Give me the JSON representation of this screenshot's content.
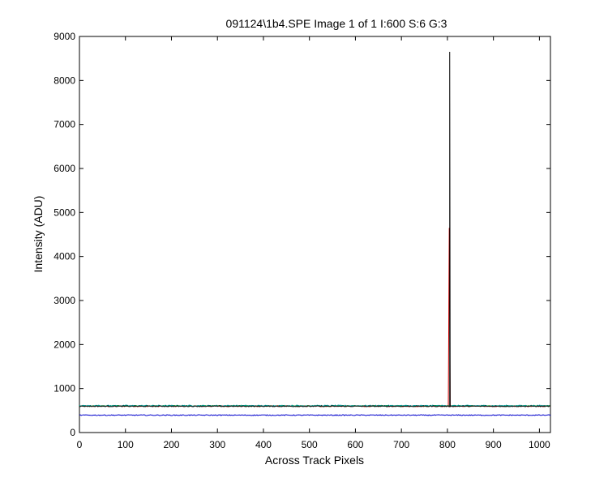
{
  "chart_data": {
    "type": "line",
    "title": "091124\\1b4.SPE  Image 1 of 1  I:600  S:6  G:3",
    "xlabel": "Across Track Pixels",
    "ylabel": "Intensity (ADU)",
    "xlim": [
      0,
      1024
    ],
    "ylim": [
      0,
      9000
    ],
    "xticks": [
      0,
      100,
      200,
      300,
      400,
      500,
      600,
      700,
      800,
      900,
      1000
    ],
    "yticks": [
      0,
      1000,
      2000,
      3000,
      4000,
      5000,
      6000,
      7000,
      8000,
      9000
    ],
    "grid": false,
    "legend": "none",
    "series": [
      {
        "color": "#cc0000",
        "baseline": 600,
        "noise": 12,
        "spike": {
          "x": 804,
          "y": 4650
        }
      },
      {
        "color": "#00a000",
        "baseline": 605,
        "noise": 12
      },
      {
        "color": "#00a0a0",
        "baseline": 610,
        "noise": 14
      },
      {
        "color": "#000000",
        "baseline": 598,
        "noise": 10,
        "spike": {
          "x": 805,
          "y": 8650
        }
      },
      {
        "color": "#0000cc",
        "baseline": 395,
        "noise": 10
      }
    ]
  }
}
